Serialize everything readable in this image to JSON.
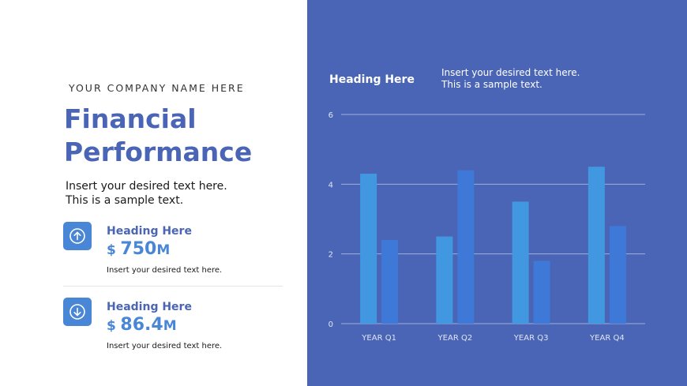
{
  "left": {
    "company": "YOUR COMPANY NAME HERE",
    "title_line1": "Financial",
    "title_line2": "Performance",
    "intro_line1": "Insert your desired text here.",
    "intro_line2": "This is a sample text.",
    "kpis": [
      {
        "icon": "arrow-up-circle-icon",
        "heading": "Heading Here",
        "currency": "$",
        "value": "750",
        "unit": "M",
        "desc": "Insert your desired text here."
      },
      {
        "icon": "arrow-down-circle-icon",
        "heading": "Heading Here",
        "currency": "$",
        "value": "86.4",
        "unit": "M",
        "desc": "Insert your desired text here."
      }
    ]
  },
  "chart_panel": {
    "heading": "Heading Here",
    "sub_line1": "Insert your desired text here.",
    "sub_line2": "This is a sample text."
  },
  "colors": {
    "brand_blue": "#4a65b5",
    "accent_blue": "#4a86d6",
    "series_1": "#4298e0",
    "series_2": "#3f79d8"
  },
  "chart_data": {
    "type": "bar",
    "categories": [
      "YEAR Q1",
      "YEAR Q2",
      "YEAR Q3",
      "YEAR Q4"
    ],
    "series": [
      {
        "values": [
          4.3,
          2.5,
          3.5,
          4.5
        ]
      },
      {
        "values": [
          2.4,
          4.4,
          1.8,
          2.8
        ]
      }
    ],
    "ylim": [
      0,
      6
    ],
    "yticks": [
      0,
      2,
      4,
      6
    ],
    "grid": true,
    "legend": "none"
  }
}
